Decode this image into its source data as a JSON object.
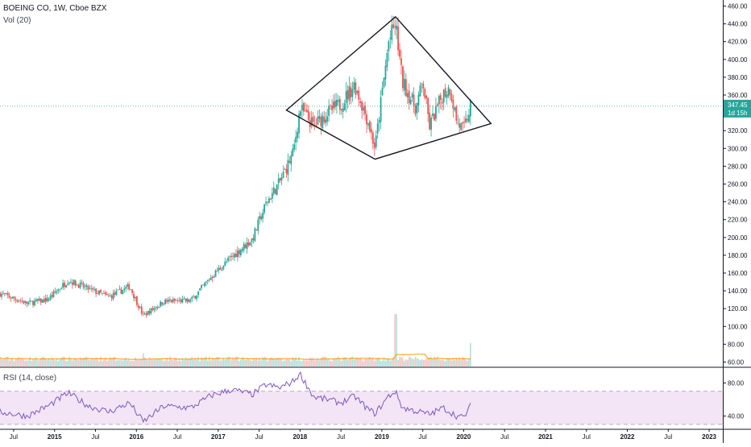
{
  "legend": {
    "symbol": "BOEING CO, 1W, Cboe BZX",
    "volume": "Vol (20)",
    "rsi": "RSI (14, close)"
  },
  "price_badge": {
    "value": "347.45",
    "countdown": "1d 15h"
  },
  "colors": {
    "up": "#26a69a",
    "down": "#ef5350",
    "vol_ma": "#ff9800",
    "rsi_line": "#7e57c2",
    "rsi_band": "#f3e5f5",
    "last_price": "#26a69a"
  },
  "chart_data": [
    {
      "type": "candlestick",
      "title": "BOEING CO, 1W, Cboe BZX",
      "x_axis": {
        "tick_labels": [
          "Jul",
          "2015",
          "Jul",
          "2016",
          "Jul",
          "2017",
          "Jul",
          "2018",
          "Jul",
          "2019",
          "Jul",
          "2020",
          "Jul",
          "2021",
          "Jul",
          "2022",
          "Jul",
          "2023"
        ],
        "range": [
          "2014-05",
          "2023-02"
        ]
      },
      "y_axis": {
        "tick_labels": [
          "60.00",
          "80.00",
          "100.00",
          "120.00",
          "140.00",
          "160.00",
          "180.00",
          "200.00",
          "220.00",
          "240.00",
          "260.00",
          "280.00",
          "300.00",
          "320.00",
          "340.00",
          "360.00",
          "380.00",
          "400.00",
          "420.00",
          "440.00",
          "460.00"
        ],
        "range": [
          55,
          465
        ]
      },
      "last_price": 347.45,
      "price_path": [
        {
          "date": "2014-05",
          "close": 137
        },
        {
          "date": "2014-09",
          "close": 126
        },
        {
          "date": "2014-12",
          "close": 130
        },
        {
          "date": "2015-03",
          "close": 152
        },
        {
          "date": "2015-06",
          "close": 142
        },
        {
          "date": "2015-09",
          "close": 133
        },
        {
          "date": "2015-12",
          "close": 145
        },
        {
          "date": "2016-02",
          "close": 112
        },
        {
          "date": "2016-05",
          "close": 128
        },
        {
          "date": "2016-09",
          "close": 129
        },
        {
          "date": "2016-12",
          "close": 156
        },
        {
          "date": "2017-03",
          "close": 178
        },
        {
          "date": "2017-06",
          "close": 198
        },
        {
          "date": "2017-08",
          "close": 238
        },
        {
          "date": "2017-10",
          "close": 262
        },
        {
          "date": "2017-12",
          "close": 295
        },
        {
          "date": "2018-01",
          "close": 345
        },
        {
          "date": "2018-03",
          "close": 325
        },
        {
          "date": "2018-05",
          "close": 340
        },
        {
          "date": "2018-07",
          "close": 350
        },
        {
          "date": "2018-09",
          "close": 372
        },
        {
          "date": "2018-11",
          "close": 330
        },
        {
          "date": "2018-12",
          "close": 300
        },
        {
          "date": "2019-02",
          "close": 420
        },
        {
          "date": "2019-03",
          "close": 440
        },
        {
          "date": "2019-04",
          "close": 375
        },
        {
          "date": "2019-06",
          "close": 345
        },
        {
          "date": "2019-07",
          "close": 375
        },
        {
          "date": "2019-08",
          "close": 325
        },
        {
          "date": "2019-10",
          "close": 362
        },
        {
          "date": "2019-11",
          "close": 368
        },
        {
          "date": "2019-12",
          "close": 330
        },
        {
          "date": "2020-01",
          "close": 320
        },
        {
          "date": "2020-02",
          "close": 347.45
        }
      ],
      "pattern": {
        "name": "diamond",
        "vertices": [
          {
            "date": "2017-11",
            "price": 343
          },
          {
            "date": "2019-03",
            "price": 448
          },
          {
            "date": "2020-05",
            "price": 328
          },
          {
            "date": "2018-12",
            "price": 288
          }
        ]
      },
      "volume_spikes": [
        {
          "date": "2016-02",
          "value": 2.5
        },
        {
          "date": "2019-03",
          "value": 10
        },
        {
          "date": "2020-02",
          "value": 4.5
        }
      ]
    },
    {
      "type": "line",
      "title": "RSI (14, close)",
      "y_axis": {
        "tick_labels": [
          "40.00",
          "80.00"
        ],
        "range": [
          25,
          97
        ]
      },
      "bands": {
        "upper": 70,
        "lower": 30
      },
      "series": [
        {
          "name": "",
          "points": [
            {
              "date": "2014-05",
              "value": 45
            },
            {
              "date": "2014-09",
              "value": 40
            },
            {
              "date": "2014-12",
              "value": 52
            },
            {
              "date": "2015-03",
              "value": 68
            },
            {
              "date": "2015-06",
              "value": 52
            },
            {
              "date": "2015-09",
              "value": 45
            },
            {
              "date": "2015-12",
              "value": 56
            },
            {
              "date": "2016-02",
              "value": 33
            },
            {
              "date": "2016-05",
              "value": 52
            },
            {
              "date": "2016-09",
              "value": 50
            },
            {
              "date": "2016-12",
              "value": 65
            },
            {
              "date": "2017-03",
              "value": 72
            },
            {
              "date": "2017-06",
              "value": 66
            },
            {
              "date": "2017-08",
              "value": 78
            },
            {
              "date": "2017-10",
              "value": 74
            },
            {
              "date": "2017-12",
              "value": 82
            },
            {
              "date": "2018-01",
              "value": 91
            },
            {
              "date": "2018-03",
              "value": 63
            },
            {
              "date": "2018-05",
              "value": 60
            },
            {
              "date": "2018-07",
              "value": 56
            },
            {
              "date": "2018-09",
              "value": 64
            },
            {
              "date": "2018-11",
              "value": 48
            },
            {
              "date": "2018-12",
              "value": 43
            },
            {
              "date": "2019-02",
              "value": 64
            },
            {
              "date": "2019-03",
              "value": 70
            },
            {
              "date": "2019-04",
              "value": 50
            },
            {
              "date": "2019-06",
              "value": 46
            },
            {
              "date": "2019-08",
              "value": 42
            },
            {
              "date": "2019-10",
              "value": 50
            },
            {
              "date": "2019-12",
              "value": 40
            },
            {
              "date": "2020-01",
              "value": 38
            },
            {
              "date": "2020-02",
              "value": 52
            }
          ]
        }
      ]
    }
  ]
}
